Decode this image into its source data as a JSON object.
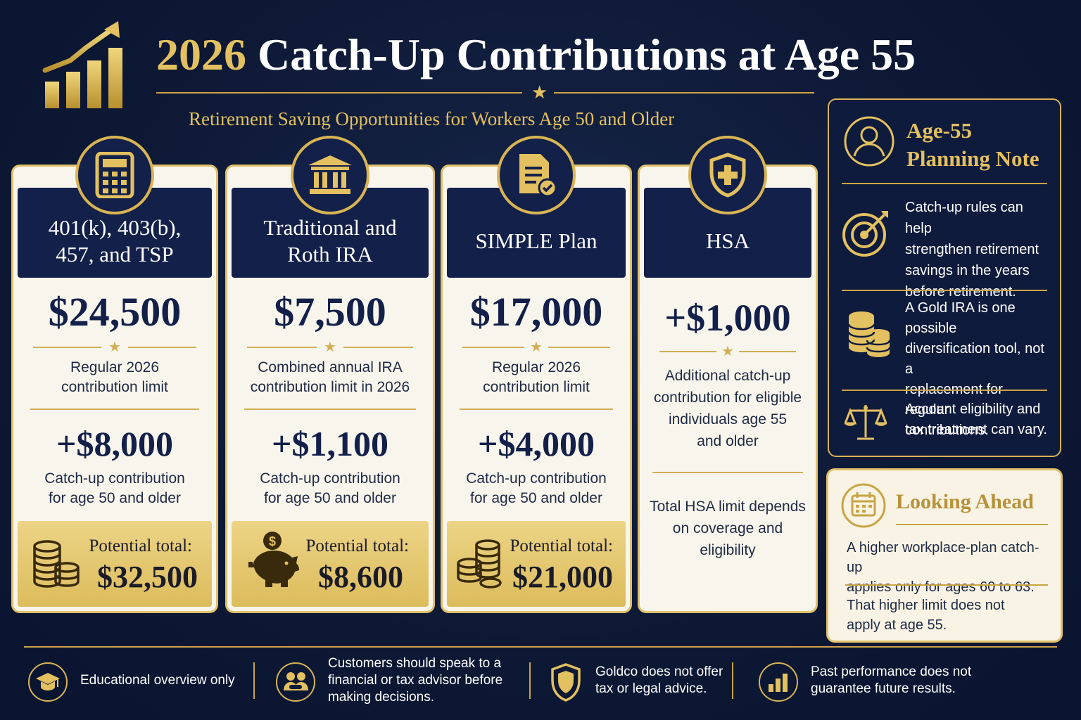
{
  "header": {
    "title_year": "2026",
    "title_rest": " Catch-Up Contributions at Age 55",
    "subtitle": "Retirement Saving Opportunities for Workers Age 50 and Older",
    "logo_icon": "rising-bar-chart-icon"
  },
  "cards": [
    {
      "icon": "calculator-icon",
      "head_line1": "401(k), 403(b),",
      "head_line2": "457, and TSP",
      "amount": "$24,500",
      "desc_line1": "Regular 2026",
      "desc_line2": "contribution limit",
      "catchup": "+$8,000",
      "catchup_line1": "Catch-up contribution",
      "catchup_line2": "for age 50 and older",
      "total_label": "Potential total:",
      "total_value": "$32,500",
      "total_icon": "coin-stacks-icon"
    },
    {
      "icon": "bank-building-icon",
      "head_line1": "Traditional and",
      "head_line2": "Roth IRA",
      "amount": "$7,500",
      "desc_line1": "Combined annual IRA",
      "desc_line2": "contribution limit in 2026",
      "catchup": "+$1,100",
      "catchup_line1": "Catch-up contribution",
      "catchup_line2": "for age 50 and older",
      "total_label": "Potential total:",
      "total_value": "$8,600",
      "total_icon": "piggy-bank-icon"
    },
    {
      "icon": "document-check-icon",
      "head_line1": "SIMPLE Plan",
      "head_line2": "",
      "amount": "$17,000",
      "desc_line1": "Regular 2026",
      "desc_line2": "contribution limit",
      "catchup": "+$4,000",
      "catchup_line1": "Catch-up contribution",
      "catchup_line2": "for age 50 and older",
      "total_label": "Potential total:",
      "total_value": "$21,000",
      "total_icon": "coin-stacks-icon"
    },
    {
      "icon": "shield-cross-icon",
      "head_line1": "HSA",
      "amount": "+$1,000",
      "desc_lines": [
        "Additional catch-up",
        "contribution for eligible",
        "individuals age 55",
        "and older"
      ],
      "note_lines": [
        "Total HSA limit depends",
        "on coverage and",
        "eligibility"
      ]
    }
  ],
  "planning_note": {
    "title_line1": "Age-55",
    "title_line2": "Planning Note",
    "icon": "person-icon",
    "items": [
      {
        "icon": "target-icon",
        "lines": [
          "Catch-up rules can help",
          "strengthen retirement",
          "savings in the years",
          "before retirement."
        ]
      },
      {
        "icon": "gold-coins-icon",
        "lines": [
          "A Gold IRA is one possible",
          "diversification tool, not a",
          "replacement for regular",
          "contributions."
        ]
      },
      {
        "icon": "scales-icon",
        "lines": [
          "Account eligibility and",
          "tax treatment can vary."
        ]
      }
    ]
  },
  "looking_ahead": {
    "title": "Looking Ahead",
    "icon": "calendar-icon",
    "p1_line1": "A higher workplace-plan catch-up",
    "p1_line2": "applies only for ages 60 to 63.",
    "p2_line1": "That higher limit does not",
    "p2_line2": "apply at age 55."
  },
  "footer": [
    {
      "icon": "graduation-cap-icon",
      "lines": [
        "Educational overview only"
      ]
    },
    {
      "icon": "advisor-people-icon",
      "lines": [
        "Customers should speak to a",
        "financial or tax advisor before",
        "making decisions."
      ]
    },
    {
      "icon": "shield-icon",
      "lines": [
        "Goldco does not offer",
        "tax or legal advice."
      ]
    },
    {
      "icon": "bar-chart-icon",
      "lines": [
        "Past performance does not",
        "guarantee future results."
      ]
    }
  ],
  "colors": {
    "navy": "#13204a",
    "gold": "#e3c060",
    "cream": "#f8f5ec"
  }
}
